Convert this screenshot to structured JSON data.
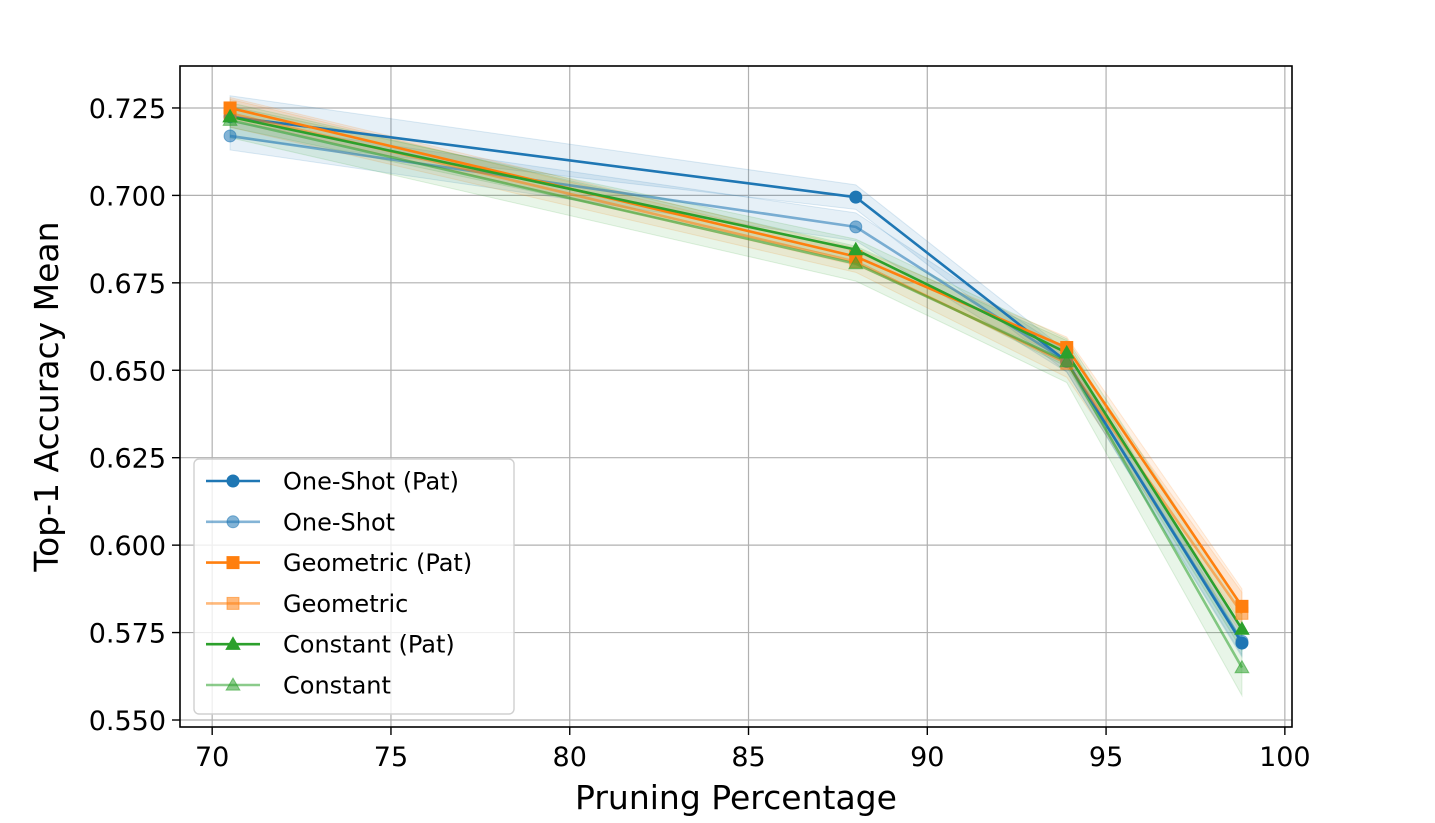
{
  "chart_data": {
    "type": "line",
    "title": "",
    "xlabel": "Pruning Percentage",
    "ylabel": "Top-1 Accuracy Mean",
    "xlim": [
      69.1,
      100.2
    ],
    "ylim": [
      0.548,
      0.737
    ],
    "xticks": [
      70,
      75,
      80,
      85,
      90,
      95,
      100
    ],
    "yticks": [
      0.55,
      0.575,
      0.6,
      0.625,
      0.65,
      0.675,
      0.7,
      0.725
    ],
    "xtick_labels": [
      "70",
      "75",
      "80",
      "85",
      "90",
      "95",
      "100"
    ],
    "ytick_labels": [
      "0.550",
      "0.575",
      "0.600",
      "0.625",
      "0.650",
      "0.675",
      "0.700",
      "0.725"
    ],
    "grid": true,
    "legend_position": "lower-left",
    "x": [
      70.5,
      88.0,
      93.9,
      98.8
    ],
    "series": [
      {
        "name": "One-Shot (Pat)",
        "values": [
          0.7225,
          0.6995,
          0.6525,
          0.572
        ],
        "band": [
          0.006,
          0.0035,
          0.003,
          0.004
        ],
        "color": "#1f77b4",
        "marker": "circle",
        "alpha": 1.0
      },
      {
        "name": "One-Shot",
        "values": [
          0.717,
          0.691,
          0.6525,
          0.5725
        ],
        "band": [
          0.004,
          0.004,
          0.003,
          0.004
        ],
        "color": "#1f77b4",
        "marker": "circle",
        "alpha": 0.55
      },
      {
        "name": "Geometric (Pat)",
        "values": [
          0.725,
          0.6825,
          0.6565,
          0.5825
        ],
        "band": [
          0.003,
          0.0025,
          0.003,
          0.005
        ],
        "color": "#ff7f0e",
        "marker": "square",
        "alpha": 1.0
      },
      {
        "name": "Geometric",
        "values": [
          0.7235,
          0.681,
          0.652,
          0.5805
        ],
        "band": [
          0.004,
          0.003,
          0.004,
          0.006
        ],
        "color": "#ff7f0e",
        "marker": "square",
        "alpha": 0.55
      },
      {
        "name": "Constant (Pat)",
        "values": [
          0.7225,
          0.6845,
          0.655,
          0.576
        ],
        "band": [
          0.003,
          0.003,
          0.004,
          0.006
        ],
        "color": "#2ca02c",
        "marker": "triangle",
        "alpha": 1.0
      },
      {
        "name": "Constant",
        "values": [
          0.7215,
          0.6805,
          0.6525,
          0.565
        ],
        "band": [
          0.005,
          0.005,
          0.006,
          0.008
        ],
        "color": "#2ca02c",
        "marker": "triangle",
        "alpha": 0.55
      }
    ]
  }
}
